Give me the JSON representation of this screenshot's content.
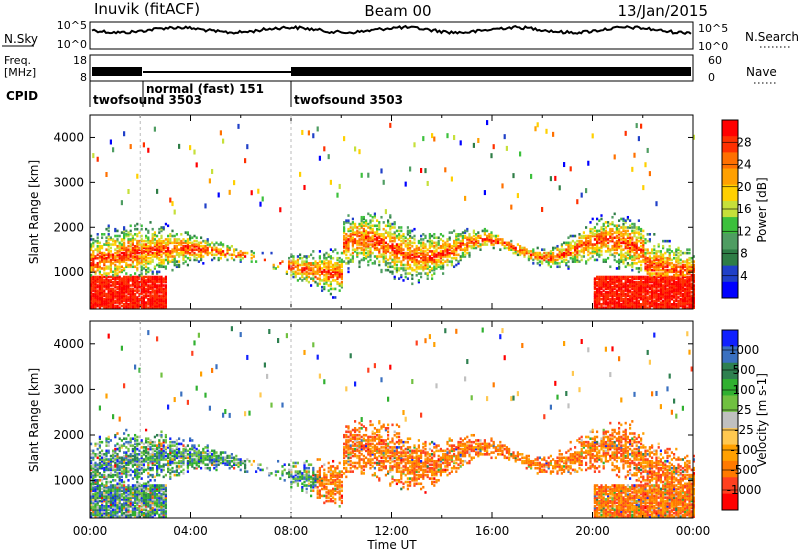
{
  "header": {
    "station": "Inuvik (fitACF)",
    "beam": "Beam 00",
    "date": "13/Jan/2015"
  },
  "panels": {
    "nsky": {
      "left_label": "N.Sky",
      "left_ticks": [
        "10^5",
        "10^0"
      ],
      "right_ticks": [
        "10^5",
        "10^0"
      ],
      "right_label": "N.Search"
    },
    "freq": {
      "left_label_line1": "Freq.",
      "left_label_line2": "[MHz]",
      "left_ticks": [
        "18",
        "8"
      ],
      "right_ticks": [
        "60",
        "0"
      ],
      "right_label": "Nave"
    },
    "cpid": {
      "label": "CPID",
      "modes": [
        {
          "text": "twofsound 3503"
        },
        {
          "text": "normal (fast) 151"
        },
        {
          "text": "twofsound 3503"
        }
      ]
    }
  },
  "colors": {
    "power_scale": [
      "#0000ff",
      "#2040c8",
      "#2e7d46",
      "#4f9d62",
      "#3cc03c",
      "#c6e03a",
      "#ffd000",
      "#ffa000",
      "#ff7000",
      "#ff3000",
      "#ff0000"
    ],
    "velocity_scale": [
      "#ff0000",
      "#ff4020",
      "#ff7a00",
      "#ffa000",
      "#ffc850",
      "#c0c0c0",
      "#70c040",
      "#30b030",
      "#2e8050",
      "#3a70c0",
      "#1020ff"
    ]
  },
  "chart_data": [
    {
      "type": "heatmap",
      "title": "",
      "ylabel": "Slant Range [km]",
      "xlabel": "",
      "xlim": [
        "00:00",
        "24:00"
      ],
      "ylim": [
        180,
        4500
      ],
      "x_ticks": [
        "00:00",
        "04:00",
        "08:00",
        "12:00",
        "16:00",
        "20:00",
        "00:00"
      ],
      "y_ticks": [
        "1000",
        "2000",
        "3000",
        "4000"
      ],
      "colorbar": {
        "label": "Power [dB]",
        "range": [
          0,
          30
        ],
        "ticks": [
          "28",
          "24",
          "20",
          "16",
          "12",
          "8",
          "4"
        ]
      }
    },
    {
      "type": "heatmap",
      "title": "",
      "ylabel": "Slant Range [km]",
      "xlabel": "Time UT",
      "xlim": [
        "00:00",
        "24:00"
      ],
      "ylim": [
        180,
        4500
      ],
      "x_ticks": [
        "00:00",
        "04:00",
        "08:00",
        "12:00",
        "16:00",
        "20:00",
        "00:00"
      ],
      "y_ticks": [
        "1000",
        "2000",
        "3000",
        "4000"
      ],
      "colorbar": {
        "label": "Velocity [m s-1]",
        "range": [
          -1000,
          1000
        ],
        "ticks": [
          "1000",
          "500",
          "100",
          "25",
          "-25",
          "-100",
          "-500",
          "-1000"
        ]
      }
    }
  ]
}
